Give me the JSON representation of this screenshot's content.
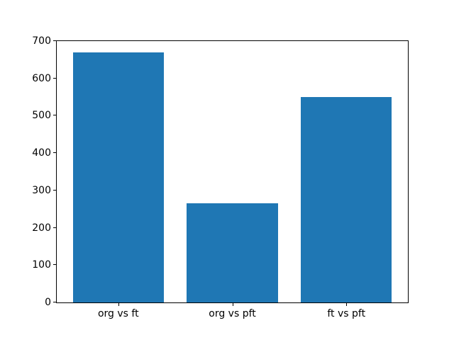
{
  "figure": {
    "background": "#ffffff"
  },
  "chart_data": {
    "type": "bar",
    "categories": [
      "org vs ft",
      "org vs pft",
      "ft vs pft"
    ],
    "values": [
      670,
      265,
      550
    ],
    "title": "",
    "xlabel": "",
    "ylabel": "",
    "ylim": [
      0,
      700
    ],
    "yticks": [
      0,
      100,
      200,
      300,
      400,
      500,
      600,
      700
    ],
    "bar_color": "#1f77b4",
    "axis_color": "#000000",
    "grid": false,
    "legend": "none",
    "bar_width_fraction": 0.8
  }
}
